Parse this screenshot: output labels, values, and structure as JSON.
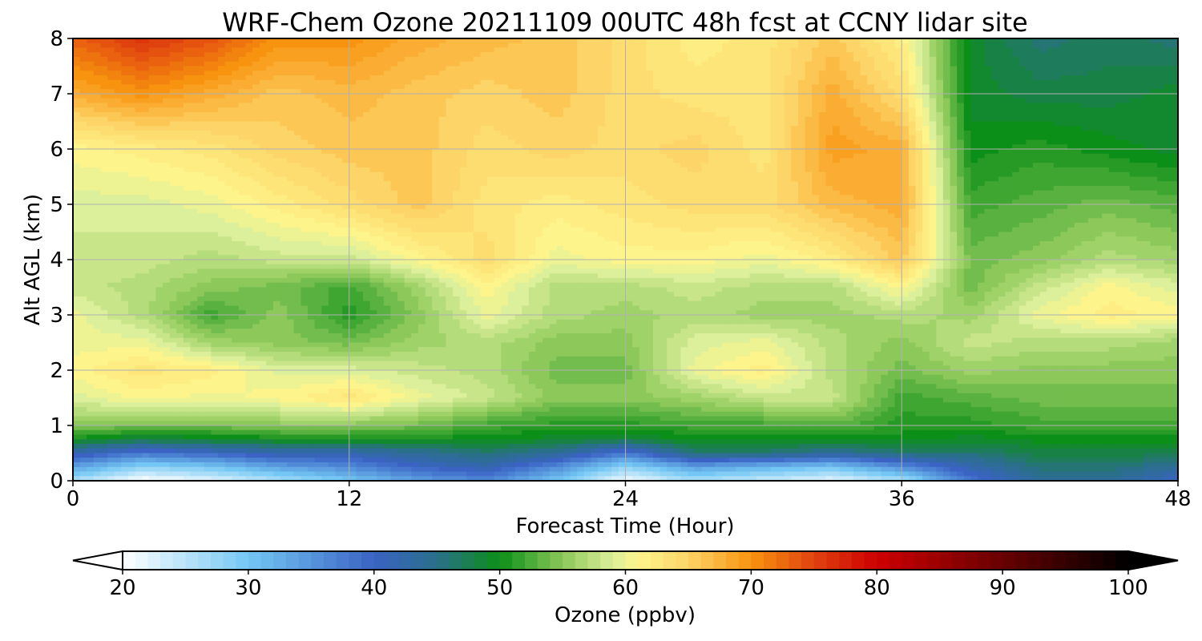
{
  "chart_data": {
    "type": "heatmap",
    "title": "WRF-Chem Ozone  20211109 00UTC 48h fcst at CCNY lidar site",
    "xlabel": "Forecast Time (Hour)",
    "ylabel": "Alt AGL (km)",
    "xlim": [
      0,
      48
    ],
    "ylim": [
      0,
      8
    ],
    "xticks": [
      0,
      12,
      24,
      36,
      48
    ],
    "yticks": [
      0,
      1,
      2,
      3,
      4,
      5,
      6,
      7,
      8
    ],
    "grid": true,
    "x": [
      0,
      3,
      6,
      9,
      12,
      15,
      18,
      21,
      24,
      27,
      30,
      33,
      36,
      39,
      42,
      45,
      48
    ],
    "y": [
      0,
      0.25,
      0.5,
      0.75,
      1,
      1.5,
      2,
      2.5,
      3,
      3.5,
      4,
      5,
      6,
      7,
      8
    ],
    "z": [
      [
        26,
        20,
        22,
        26,
        30,
        34,
        36,
        30,
        21,
        26,
        24,
        22,
        26,
        38,
        44,
        44,
        40
      ],
      [
        34,
        28,
        30,
        34,
        36,
        40,
        42,
        36,
        28,
        34,
        32,
        30,
        36,
        42,
        46,
        46,
        44
      ],
      [
        42,
        38,
        40,
        42,
        42,
        44,
        46,
        44,
        38,
        46,
        46,
        44,
        46,
        46,
        48,
        48,
        48
      ],
      [
        50,
        48,
        49,
        50,
        50,
        50,
        50,
        49,
        48,
        50,
        50,
        50,
        50,
        49,
        50,
        50,
        50
      ],
      [
        55,
        54,
        54,
        55,
        55,
        54,
        52,
        51,
        51,
        52,
        52,
        53,
        51,
        51,
        52,
        52,
        52
      ],
      [
        59,
        61,
        60,
        61,
        63,
        60,
        58,
        55,
        55,
        56,
        58,
        58,
        52,
        53,
        54,
        54,
        54
      ],
      [
        61,
        63,
        62,
        59,
        59,
        58,
        57,
        54,
        54,
        60,
        62,
        57,
        54,
        56,
        55,
        55,
        55
      ],
      [
        60,
        60,
        56,
        55,
        54,
        56,
        57,
        55,
        55,
        59,
        60,
        57,
        55,
        58,
        57,
        57,
        56
      ],
      [
        60,
        57,
        52,
        55,
        51,
        55,
        60,
        57,
        56,
        57,
        56,
        56,
        57,
        56,
        60,
        62,
        61
      ],
      [
        58,
        57,
        55,
        54,
        52,
        56,
        61,
        57,
        57,
        58,
        57,
        57,
        61,
        54,
        58,
        61,
        59
      ],
      [
        58,
        58,
        57,
        58,
        58,
        61,
        64,
        60,
        61,
        61,
        60,
        62,
        66,
        54,
        55,
        57,
        56
      ],
      [
        59,
        59,
        60,
        62,
        64,
        66,
        63,
        62,
        63,
        64,
        64,
        67,
        68,
        52,
        53,
        54,
        53
      ],
      [
        61,
        62,
        63,
        65,
        66,
        66,
        64,
        65,
        64,
        65,
        63,
        69,
        68,
        50,
        51,
        50,
        49
      ],
      [
        68,
        70,
        68,
        66,
        67,
        66,
        65,
        66,
        64,
        63,
        63,
        68,
        64,
        49,
        48,
        48,
        49
      ],
      [
        73,
        76,
        74,
        70,
        70,
        68,
        67,
        66,
        64,
        62,
        63,
        66,
        62,
        49,
        46,
        47,
        46
      ]
    ],
    "colorbar": {
      "label": "Ozone  (ppbv)",
      "range": [
        20,
        100
      ],
      "ticks": [
        20,
        30,
        40,
        50,
        60,
        70,
        80,
        90,
        100
      ],
      "extend": "both",
      "colors": [
        {
          "v": 20,
          "c": "#ffffff"
        },
        {
          "v": 30,
          "c": "#74c7f4"
        },
        {
          "v": 40,
          "c": "#3a63c4"
        },
        {
          "v": 45,
          "c": "#2a6f8a"
        },
        {
          "v": 50,
          "c": "#0c8f18"
        },
        {
          "v": 55,
          "c": "#8cc85a"
        },
        {
          "v": 59,
          "c": "#dcef9a"
        },
        {
          "v": 61,
          "c": "#fdf58c"
        },
        {
          "v": 65,
          "c": "#fdd467"
        },
        {
          "v": 70,
          "c": "#f8930f"
        },
        {
          "v": 75,
          "c": "#e0420f"
        },
        {
          "v": 80,
          "c": "#cd0000"
        },
        {
          "v": 90,
          "c": "#680000"
        },
        {
          "v": 100,
          "c": "#000000"
        }
      ]
    }
  }
}
